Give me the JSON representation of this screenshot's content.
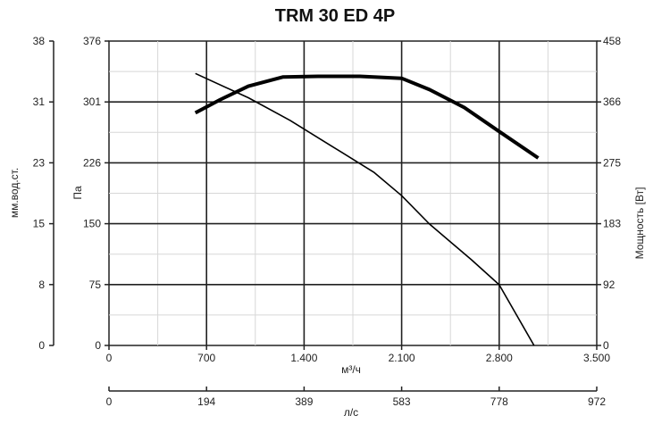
{
  "chart_data": {
    "type": "line",
    "title": "TRM 30 ED 4P",
    "x_axis": {
      "label": "м³/ч",
      "range": [
        0,
        3500
      ],
      "ticks": [
        "0",
        "700",
        "1.400",
        "2.100",
        "2.800",
        "3.500"
      ]
    },
    "x2_axis": {
      "label": "л/с",
      "range": [
        0,
        972
      ],
      "ticks": [
        "0",
        "194",
        "389",
        "583",
        "778",
        "972"
      ]
    },
    "y_left_outer": {
      "label": "мм.вод.ст.",
      "range": [
        0,
        38
      ],
      "ticks": [
        "0",
        "8",
        "15",
        "23",
        "31",
        "38"
      ]
    },
    "y_left_inner": {
      "label": "Па",
      "range": [
        0,
        376
      ],
      "ticks": [
        "0",
        "75",
        "150",
        "226",
        "301",
        "376"
      ]
    },
    "y_right": {
      "label": "Мощность [Вт]",
      "range": [
        0,
        458
      ],
      "ticks": [
        "0",
        "92",
        "183",
        "275",
        "366",
        "458"
      ]
    },
    "grid": true,
    "series": [
      {
        "axis": "pa",
        "points": [
          [
            620,
            336
          ],
          [
            1000,
            306
          ],
          [
            1300,
            278
          ],
          [
            1600,
            246
          ],
          [
            1900,
            214
          ],
          [
            2100,
            185
          ],
          [
            2300,
            150
          ],
          [
            2600,
            106
          ],
          [
            2800,
            75
          ],
          [
            3050,
            0
          ]
        ]
      },
      {
        "axis": "watts",
        "points": [
          [
            620,
            350
          ],
          [
            800,
            370
          ],
          [
            1000,
            390
          ],
          [
            1250,
            404
          ],
          [
            1500,
            405
          ],
          [
            1800,
            405
          ],
          [
            2100,
            402
          ],
          [
            2300,
            385
          ],
          [
            2550,
            358
          ],
          [
            2800,
            322
          ],
          [
            3080,
            282
          ]
        ]
      }
    ]
  }
}
